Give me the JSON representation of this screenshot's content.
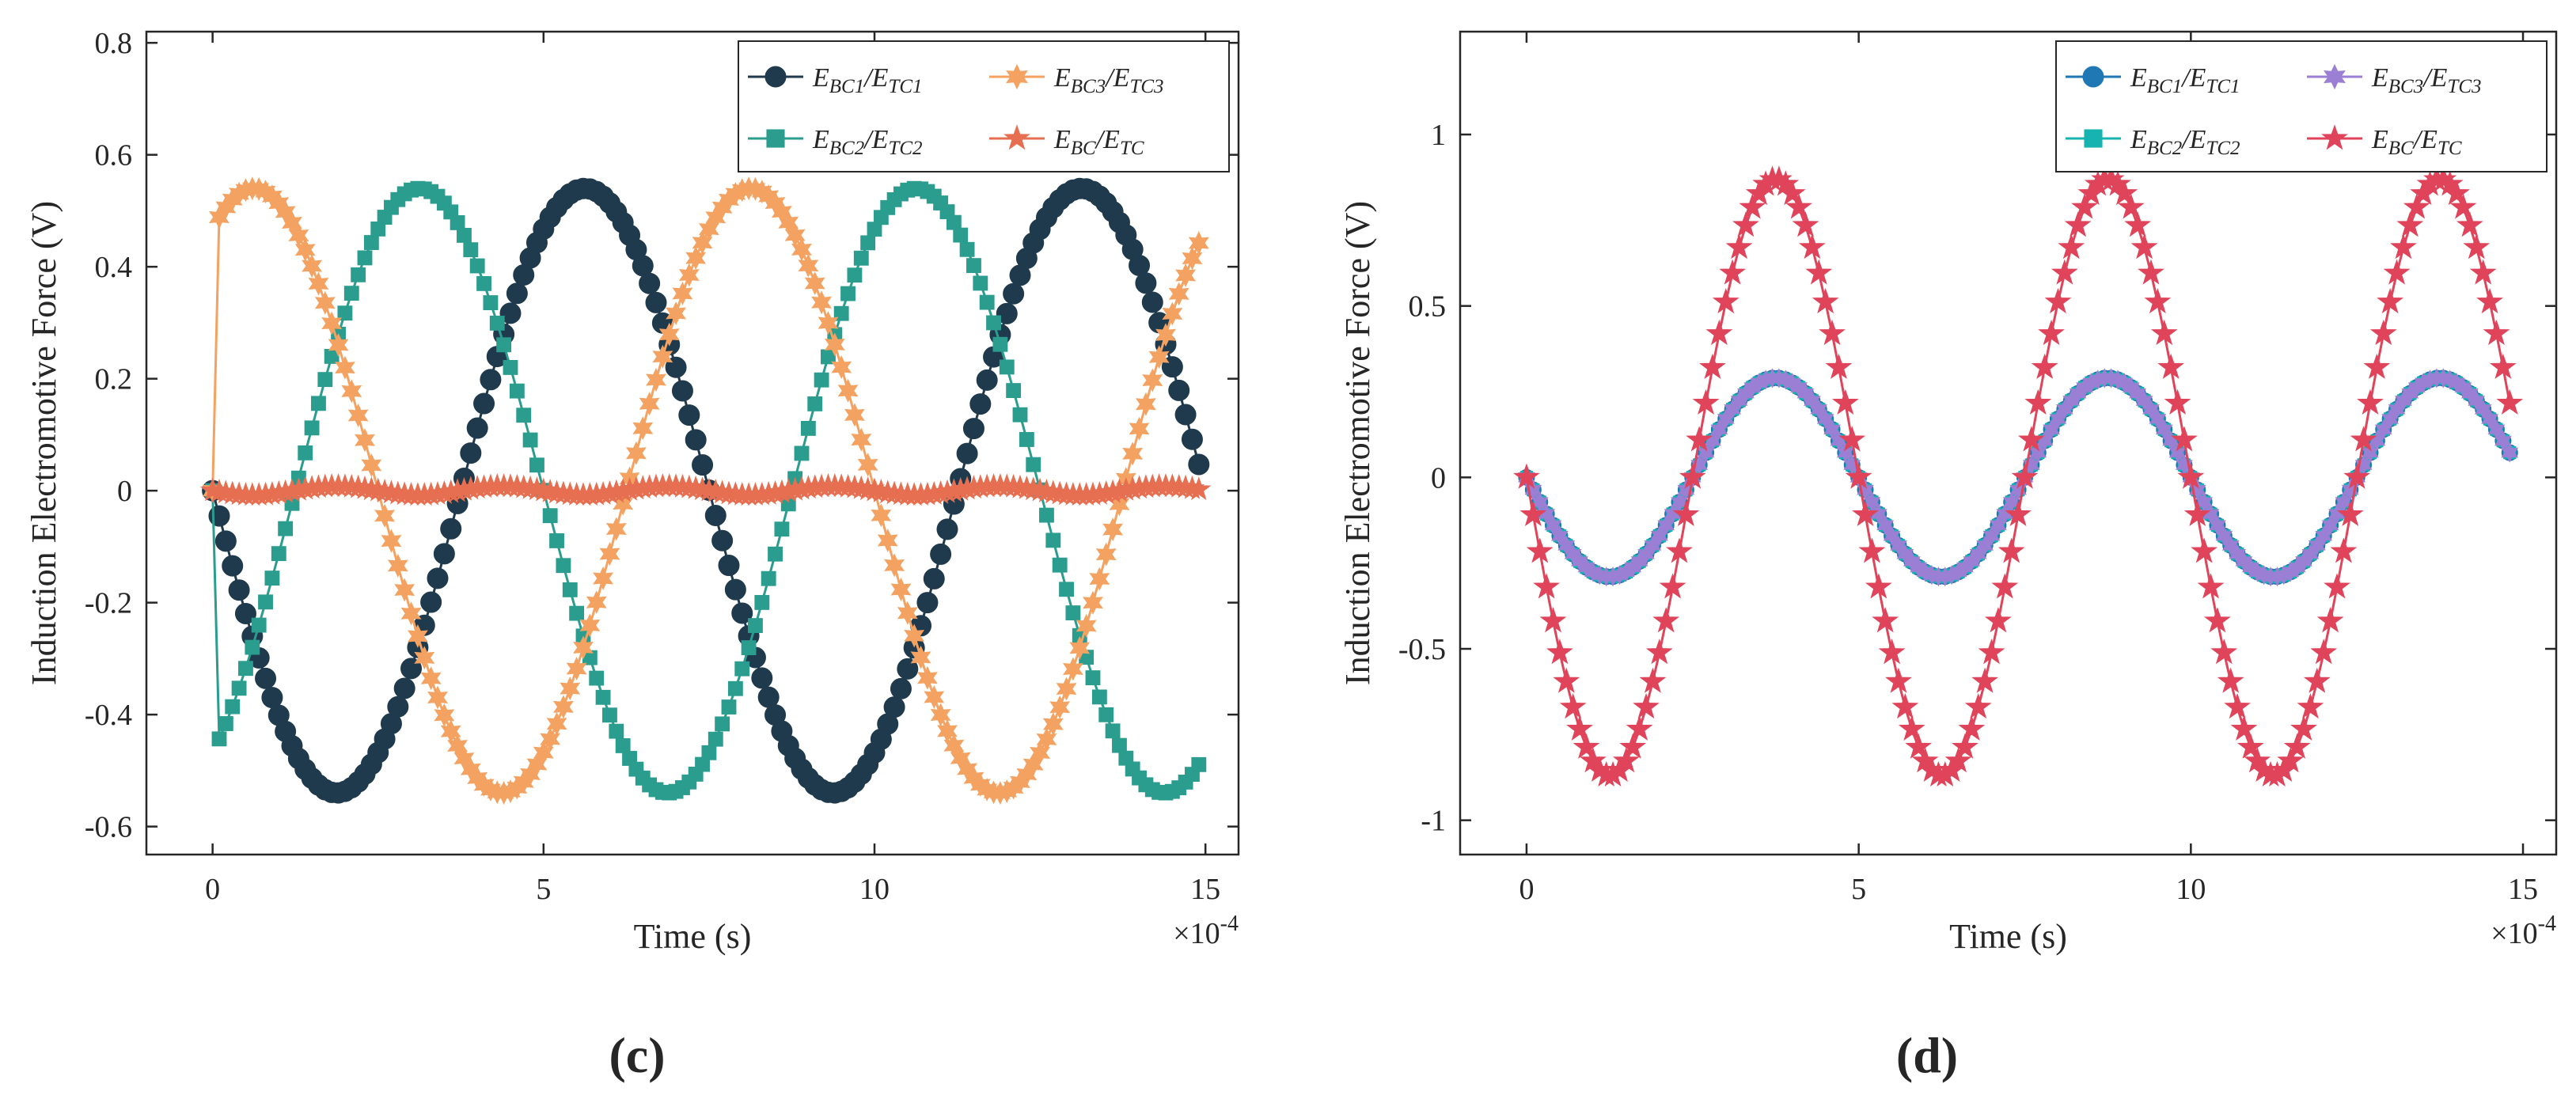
{
  "figure": {
    "panels": [
      {
        "panel_label": "(c)",
        "legend_location": "top-right",
        "x_multiplier": "×10",
        "x_multiplier_exp": "-4"
      },
      {
        "panel_label": "(d)",
        "legend_location": "top-right",
        "x_multiplier": "×10",
        "x_multiplier_exp": "-4"
      }
    ]
  },
  "chart_data": [
    {
      "type": "line",
      "title": "",
      "xlabel": "Time (s)",
      "ylabel": "Induction Electromotive Force (V)",
      "xlim": [
        -0.0001,
        0.00155
      ],
      "ylim": [
        -0.65,
        0.82
      ],
      "x_ticks": [
        0,
        5,
        10,
        15
      ],
      "y_ticks": [
        -0.6,
        -0.4,
        -0.2,
        0,
        0.2,
        0.4,
        0.6,
        0.8
      ],
      "x_tick_labels": [
        "0",
        "5",
        "10",
        "15"
      ],
      "y_tick_labels": [
        "-0.6",
        "-0.4",
        "-0.2",
        "0",
        "0.2",
        "0.4",
        "0.6",
        "0.8"
      ],
      "x_scale_note": "×10^-4",
      "grid": false,
      "legend_columns": 2,
      "sampling": {
        "x_start": 0,
        "x_end": 0.00149,
        "step": 1e-05
      },
      "series": [
        {
          "name": "E_BC1/E_TC1",
          "label_main": "E",
          "label_sub1": "BC1",
          "label_sep": "/E",
          "label_sub2": "TC1",
          "color": "#1f3a4c",
          "marker": "circle",
          "amplitude": 0.54,
          "frequency_hz": 1333,
          "phase_deg": 180,
          "ramp_first_point": 0
        },
        {
          "name": "E_BC2/E_TC2",
          "label_main": "E",
          "label_sub1": "BC2",
          "label_sep": "/E",
          "label_sub2": "TC2",
          "color": "#2a9d8f",
          "marker": "square",
          "amplitude": 0.54,
          "frequency_hz": 1333,
          "phase_deg": 300,
          "ramp_first_point": 0
        },
        {
          "name": "E_BC3/E_TC3",
          "label_main": "E",
          "label_sub1": "BC3",
          "label_sep": "/E",
          "label_sub2": "TC3",
          "color": "#f4a261",
          "marker": "hexagram",
          "amplitude": 0.54,
          "frequency_hz": 1333,
          "phase_deg": 60,
          "ramp_first_point": 0
        },
        {
          "name": "E_BC/E_TC",
          "label_main": "E",
          "label_sub1": "BC",
          "label_sep": "/E",
          "label_sub2": "TC",
          "color": "#e76f51",
          "marker": "pentagram",
          "amplitude": 0.008,
          "frequency_hz": 4000,
          "phase_deg": 180,
          "ramp_first_point": 0
        }
      ]
    },
    {
      "type": "line",
      "title": "",
      "xlabel": "Time (s)",
      "ylabel": "Induction Electromotive Force (V)",
      "xlim": [
        -0.0001,
        0.00155
      ],
      "ylim": [
        -1.1,
        1.3
      ],
      "x_ticks": [
        0,
        5,
        10,
        15
      ],
      "y_ticks": [
        -1,
        -0.5,
        0,
        0.5,
        1
      ],
      "x_tick_labels": [
        "0",
        "5",
        "10",
        "15"
      ],
      "y_tick_labels": [
        "-1",
        "-0.5",
        "0",
        "0.5",
        "1"
      ],
      "x_scale_note": "×10^-4",
      "grid": false,
      "legend_columns": 2,
      "sampling": {
        "x_start": 0,
        "x_end": 0.00148,
        "step": 1e-05
      },
      "series": [
        {
          "name": "E_BC1/E_TC1",
          "label_main": "E",
          "label_sub1": "BC1",
          "label_sep": "/E",
          "label_sub2": "TC1",
          "color": "#1f77b4",
          "marker": "circle",
          "amplitude": 0.29,
          "frequency_hz": 2000,
          "phase_deg": 180
        },
        {
          "name": "E_BC2/E_TC2",
          "label_main": "E",
          "label_sub1": "BC2",
          "label_sep": "/E",
          "label_sub2": "TC2",
          "color": "#17b3b0",
          "marker": "square",
          "amplitude": 0.29,
          "frequency_hz": 2000,
          "phase_deg": 180
        },
        {
          "name": "E_BC3/E_TC3",
          "label_main": "E",
          "label_sub1": "BC3",
          "label_sep": "/E",
          "label_sub2": "TC3",
          "color": "#9b7fd4",
          "marker": "hexagram",
          "amplitude": 0.29,
          "frequency_hz": 2000,
          "phase_deg": 180
        },
        {
          "name": "E_BC/E_TC",
          "label_main": "E",
          "label_sub1": "BC",
          "label_sep": "/E",
          "label_sub2": "TC",
          "color": "#e0445a",
          "marker": "pentagram",
          "amplitude": 0.87,
          "frequency_hz": 2000,
          "phase_deg": 180
        }
      ]
    }
  ]
}
